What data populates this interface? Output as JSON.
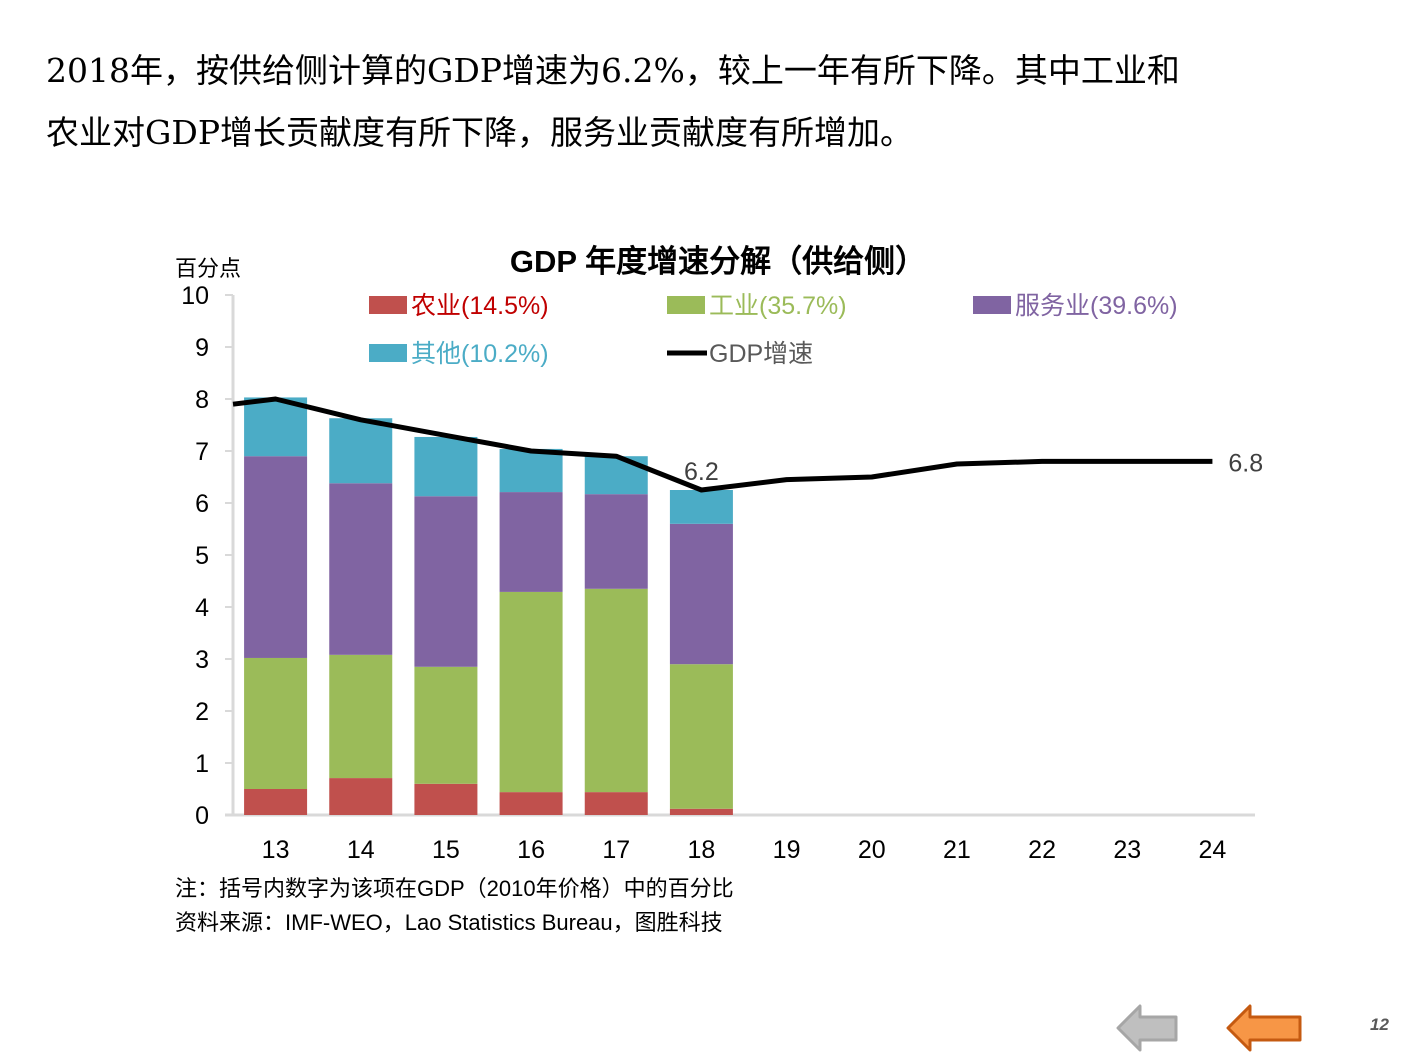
{
  "headline": {
    "line1": "2018年，按供给侧计算的GDP增速为6.2%，较上一年有所下降。其中工业和",
    "line2": "农业对GDP增长贡献度有所下降，服务业贡献度有所增加。"
  },
  "chart_data": {
    "type": "bar",
    "subtype": "stacked-bar-with-line",
    "title": "GDP 年度增速分解（供给侧）",
    "ylabel": "百分点",
    "xlabel": "",
    "ylim": [
      0,
      10
    ],
    "yticks": [
      0,
      1,
      2,
      3,
      4,
      5,
      6,
      7,
      8,
      9,
      10
    ],
    "categories": [
      "13",
      "14",
      "15",
      "16",
      "17",
      "18",
      "19",
      "20",
      "21",
      "22",
      "23",
      "24"
    ],
    "grid": false,
    "legend_position": "top",
    "series": [
      {
        "name": "农业(14.5%)",
        "type": "bar",
        "color": "#C0504D",
        "values": [
          0.5,
          0.71,
          0.6,
          0.44,
          0.44,
          0.12,
          null,
          null,
          null,
          null,
          null,
          null
        ]
      },
      {
        "name": "工业(35.7%)",
        "type": "bar",
        "color": "#9BBB59",
        "values": [
          2.52,
          2.37,
          2.25,
          3.85,
          3.91,
          2.78,
          null,
          null,
          null,
          null,
          null,
          null
        ]
      },
      {
        "name": "服务业(39.6%)",
        "type": "bar",
        "color": "#8064A2",
        "values": [
          3.88,
          3.3,
          3.28,
          1.92,
          1.82,
          2.7,
          null,
          null,
          null,
          null,
          null,
          null
        ]
      },
      {
        "name": "其他(10.2%)",
        "type": "bar",
        "color": "#4BACC6",
        "values": [
          1.13,
          1.25,
          1.14,
          0.83,
          0.73,
          0.65,
          null,
          null,
          null,
          null,
          null,
          null
        ]
      },
      {
        "name": "GDP增速",
        "type": "line",
        "color": "#000000",
        "start_value": 7.9,
        "values": [
          8.0,
          7.6,
          7.3,
          7.0,
          6.9,
          6.25,
          6.45,
          6.5,
          6.75,
          6.8,
          6.8,
          6.8
        ]
      }
    ],
    "legend_text_colors": [
      "#C00000",
      "#9BBB59",
      "#8064A2",
      "#4BACC6",
      "#595959"
    ],
    "annotations": [
      {
        "category": "18",
        "text": "6.2"
      },
      {
        "category": "24",
        "text": "6.8"
      }
    ]
  },
  "notes": {
    "note": "注：括号内数字为该项在GDP（2010年价格）中的百分比",
    "source": "资料来源：IMF-WEO，Lao Statistics Bureau，图胜科技"
  },
  "nav": {
    "prev_icon": "arrow-left-gray",
    "next_icon": "arrow-left-orange",
    "page_number": "12"
  }
}
